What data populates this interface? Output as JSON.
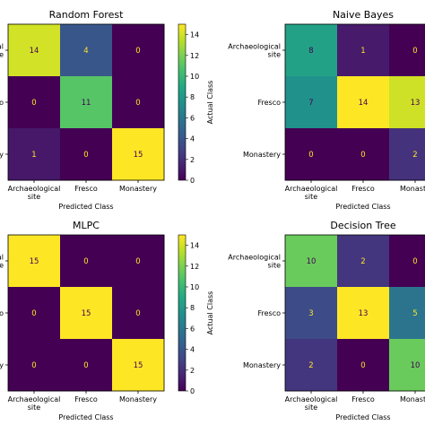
{
  "chart_data": [
    {
      "type": "heatmap",
      "title": "Random Forest",
      "xlabel": "Predicted Class",
      "ylabel": "",
      "x_tick_labels": [
        [
          "Archaeological",
          "site"
        ],
        [
          "Fresco"
        ],
        [
          "Monastery"
        ]
      ],
      "y_tick_labels": [
        "al\ne",
        "o",
        "y"
      ],
      "matrix": [
        [
          14,
          4,
          0
        ],
        [
          0,
          11,
          0
        ],
        [
          1,
          0,
          15
        ]
      ],
      "colorbar": {
        "min": 0,
        "max": 15,
        "ticks": [
          0,
          2,
          4,
          6,
          8,
          10,
          12,
          14
        ],
        "label": "Actual Class"
      }
    },
    {
      "type": "heatmap",
      "title": "Naive Bayes",
      "xlabel": "Predicted Class",
      "ylabel": "",
      "x_tick_labels": [
        [
          "Archaeological",
          "site"
        ],
        [
          "Fresco"
        ],
        [
          "Monaste"
        ]
      ],
      "y_tick_labels": [
        "Archaeological\nsite",
        "Fresco",
        "Monastery"
      ],
      "matrix": [
        [
          8,
          1,
          0
        ],
        [
          7,
          14,
          13
        ],
        [
          0,
          0,
          2
        ]
      ],
      "colorbar": null
    },
    {
      "type": "heatmap",
      "title": "MLPC",
      "xlabel": "Predicted Class",
      "ylabel": "",
      "x_tick_labels": [
        [
          "Archaeological",
          "site"
        ],
        [
          "Fresco"
        ],
        [
          "Monastery"
        ]
      ],
      "y_tick_labels": [
        "al\ne",
        "o",
        "y"
      ],
      "matrix": [
        [
          15,
          0,
          0
        ],
        [
          0,
          15,
          0
        ],
        [
          0,
          0,
          15
        ]
      ],
      "colorbar": {
        "min": 0,
        "max": 15,
        "ticks": [
          0,
          2,
          4,
          6,
          8,
          10,
          12,
          14
        ],
        "label": "Actual Class"
      }
    },
    {
      "type": "heatmap",
      "title": "Decision Tree",
      "xlabel": "Predicted Class",
      "ylabel": "",
      "x_tick_labels": [
        [
          "Archaeological",
          "site"
        ],
        [
          "Fresco"
        ],
        [
          "Monaste"
        ]
      ],
      "y_tick_labels": [
        "Archaeological\nsite",
        "Fresco",
        "Monastery"
      ],
      "matrix": [
        [
          10,
          2,
          0
        ],
        [
          3,
          13,
          5
        ],
        [
          2,
          0,
          10
        ]
      ],
      "colorbar": null
    }
  ]
}
